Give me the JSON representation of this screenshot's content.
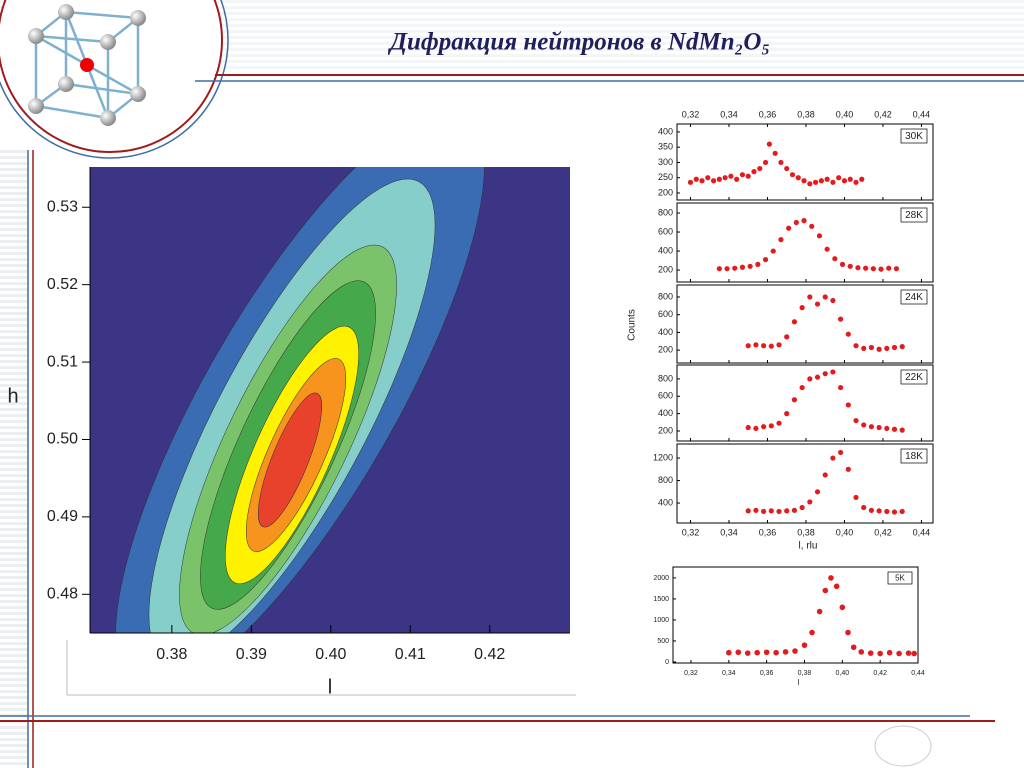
{
  "title": "Дифракция нейтронов в NdMn₂O₅",
  "chart_data": [
    {
      "type": "contour",
      "xlabel": "l",
      "ylabel": "h",
      "colors": [
        "#3c3485",
        "#3a6cb4",
        "#86cec9",
        "#7ac36a",
        "#45a84a",
        "#fff200",
        "#f7941d",
        "#e8412c"
      ],
      "xlim": [
        0.3697,
        0.4301
      ],
      "xticks": [
        0.38,
        0.39,
        {
          "value": 0.4,
          "label": "0.40"
        },
        0.41,
        0.42
      ],
      "ylim": [
        0.475,
        0.5352
      ],
      "yticks": [
        0.48,
        0.49,
        {
          "value": 0.5,
          "label": "0.50"
        },
        0.51,
        0.52,
        0.53
      ]
    },
    {
      "type": "scatter",
      "xlabel": "l, rlu",
      "ylabel": "Counts",
      "color": "#e41a1c",
      "xlim": [
        0.313,
        0.446
      ],
      "xticks": [
        {
          "value": 0.32,
          "label": "0,32"
        },
        {
          "value": 0.34,
          "label": "0,34"
        },
        {
          "value": 0.36,
          "label": "0,36"
        },
        {
          "value": 0.38,
          "label": "0,38"
        },
        {
          "value": 0.4,
          "label": "0,40"
        },
        {
          "value": 0.42,
          "label": "0,42"
        },
        {
          "value": 0.44,
          "label": "0,44"
        }
      ],
      "panels": [
        {
          "label": "30K",
          "ylim": [
            177,
            426
          ],
          "yticks": [
            200,
            250,
            300,
            350,
            400
          ],
          "x": [
            0.32,
            0.323,
            0.326,
            0.329,
            0.332,
            0.335,
            0.338,
            0.341,
            0.344,
            0.347,
            0.35,
            0.353,
            0.356,
            0.359,
            0.361,
            0.364,
            0.367,
            0.37,
            0.373,
            0.376,
            0.379,
            0.382,
            0.385,
            0.388,
            0.391,
            0.394,
            0.397,
            0.4,
            0.403,
            0.406,
            0.409
          ],
          "values": [
            235,
            245,
            240,
            250,
            240,
            245,
            250,
            255,
            245,
            260,
            255,
            270,
            280,
            300,
            360,
            330,
            300,
            280,
            260,
            250,
            240,
            230,
            235,
            240,
            245,
            235,
            250,
            240,
            245,
            235,
            245
          ]
        },
        {
          "label": "28K",
          "ylim": [
            75,
            905
          ],
          "yticks": [
            200,
            400,
            600,
            800
          ],
          "x": [
            0.335,
            0.339,
            0.343,
            0.347,
            0.351,
            0.355,
            0.359,
            0.363,
            0.367,
            0.371,
            0.375,
            0.379,
            0.383,
            0.387,
            0.391,
            0.395,
            0.399,
            0.403,
            0.407,
            0.411,
            0.415,
            0.419,
            0.423,
            0.427
          ],
          "values": [
            215,
            215,
            220,
            230,
            240,
            260,
            310,
            400,
            520,
            640,
            700,
            720,
            660,
            560,
            420,
            320,
            260,
            240,
            225,
            220,
            215,
            210,
            220,
            215
          ]
        },
        {
          "label": "24K",
          "ylim": [
            55,
            935
          ],
          "yticks": [
            200,
            400,
            600,
            800
          ],
          "x": [
            0.35,
            0.354,
            0.358,
            0.362,
            0.366,
            0.37,
            0.374,
            0.378,
            0.382,
            0.386,
            0.39,
            0.394,
            0.398,
            0.402,
            0.406,
            0.41,
            0.414,
            0.418,
            0.422,
            0.426,
            0.43
          ],
          "values": [
            250,
            260,
            250,
            245,
            260,
            350,
            520,
            680,
            800,
            720,
            800,
            760,
            550,
            380,
            250,
            220,
            230,
            210,
            220,
            230,
            240
          ]
        },
        {
          "label": "22K",
          "ylim": [
            85,
            960
          ],
          "yticks": [
            200,
            400,
            600,
            800
          ],
          "x": [
            0.35,
            0.354,
            0.358,
            0.362,
            0.366,
            0.37,
            0.374,
            0.378,
            0.382,
            0.386,
            0.39,
            0.394,
            0.398,
            0.402,
            0.406,
            0.41,
            0.414,
            0.418,
            0.422,
            0.426,
            0.43
          ],
          "values": [
            240,
            230,
            250,
            260,
            290,
            400,
            560,
            700,
            800,
            820,
            860,
            880,
            700,
            500,
            320,
            270,
            250,
            240,
            230,
            220,
            210
          ]
        },
        {
          "label": "18K",
          "ylim": [
            45,
            1450
          ],
          "yticks": [
            400,
            800,
            1200
          ],
          "x": [
            0.35,
            0.354,
            0.358,
            0.362,
            0.366,
            0.37,
            0.374,
            0.378,
            0.382,
            0.386,
            0.39,
            0.394,
            0.398,
            0.402,
            0.406,
            0.41,
            0.414,
            0.418,
            0.422,
            0.426,
            0.43
          ],
          "values": [
            260,
            270,
            250,
            260,
            250,
            260,
            270,
            320,
            420,
            600,
            900,
            1200,
            1300,
            1000,
            500,
            320,
            270,
            260,
            250,
            240,
            250
          ]
        }
      ]
    },
    {
      "type": "scatter",
      "xlabel": "l",
      "color": "#e41a1c",
      "xlim": [
        0.3105,
        0.44
      ],
      "xticks": [
        {
          "value": 0.32,
          "label": "0,32"
        },
        {
          "value": 0.34,
          "label": "0,34"
        },
        {
          "value": 0.36,
          "label": "0,36"
        },
        {
          "value": 0.38,
          "label": "0,38"
        },
        {
          "value": 0.4,
          "label": "0,40"
        },
        {
          "value": 0.42,
          "label": "0,42"
        },
        {
          "value": 0.44,
          "label": "0,44"
        }
      ],
      "panels": [
        {
          "label": "5K",
          "ylim": [
            -25,
            2260
          ],
          "yticks": [
            0,
            500,
            1000,
            1500,
            2000
          ],
          "x": [
            0.34,
            0.345,
            0.35,
            0.355,
            0.36,
            0.365,
            0.37,
            0.375,
            0.38,
            0.384,
            0.388,
            0.391,
            0.394,
            0.397,
            0.4,
            0.403,
            0.406,
            0.41,
            0.415,
            0.42,
            0.425,
            0.43,
            0.435,
            0.438
          ],
          "values": [
            220,
            230,
            210,
            220,
            230,
            220,
            240,
            260,
            400,
            700,
            1200,
            1700,
            2000,
            1800,
            1300,
            700,
            350,
            240,
            210,
            200,
            220,
            200,
            210,
            200
          ]
        }
      ]
    }
  ]
}
